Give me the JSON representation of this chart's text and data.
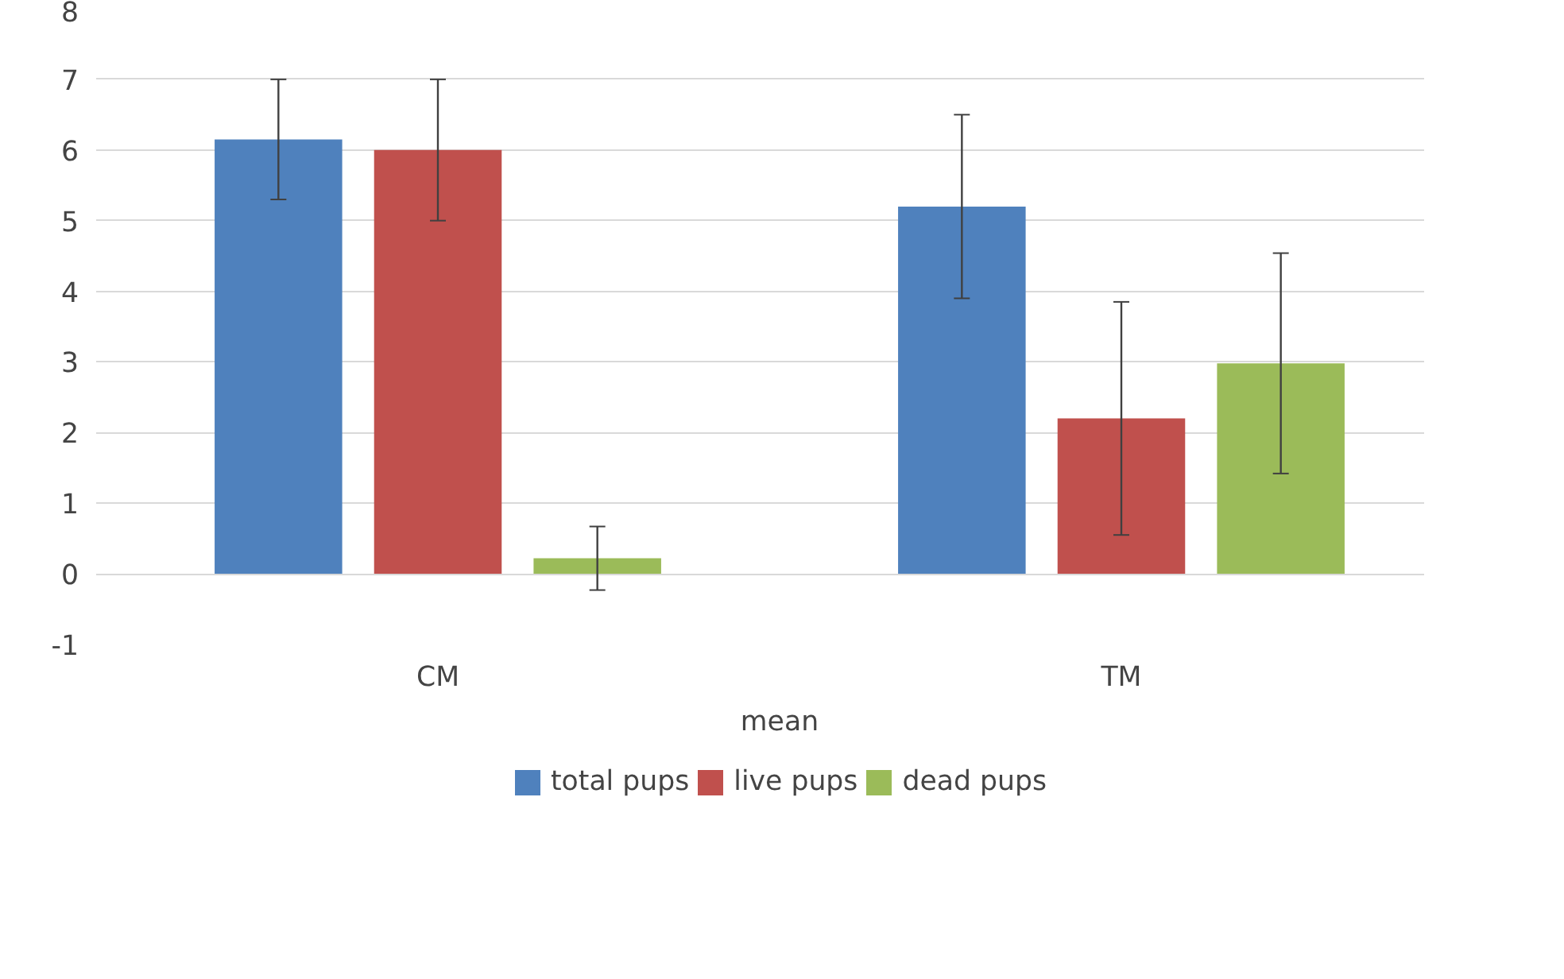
{
  "chart_data": {
    "type": "bar",
    "xlabel": "mean",
    "categories": [
      "CM",
      "TM"
    ],
    "series": [
      {
        "name": "total pups",
        "color": "#4f81bd",
        "values": [
          6.15,
          5.2
        ],
        "errors": [
          0.85,
          1.3
        ]
      },
      {
        "name": "live pups",
        "color": "#c0504d",
        "values": [
          6.0,
          2.2
        ],
        "errors": [
          1.0,
          1.65
        ]
      },
      {
        "name": "dead pups",
        "color": "#9bbb59",
        "values": [
          0.22,
          2.98
        ],
        "errors": [
          0.45,
          1.56
        ]
      }
    ],
    "ylim": [
      -1,
      8
    ],
    "yticks": [
      -1,
      0,
      1,
      2,
      3,
      4,
      5,
      6,
      7,
      8
    ],
    "grid": "y",
    "legend": "bottom"
  }
}
